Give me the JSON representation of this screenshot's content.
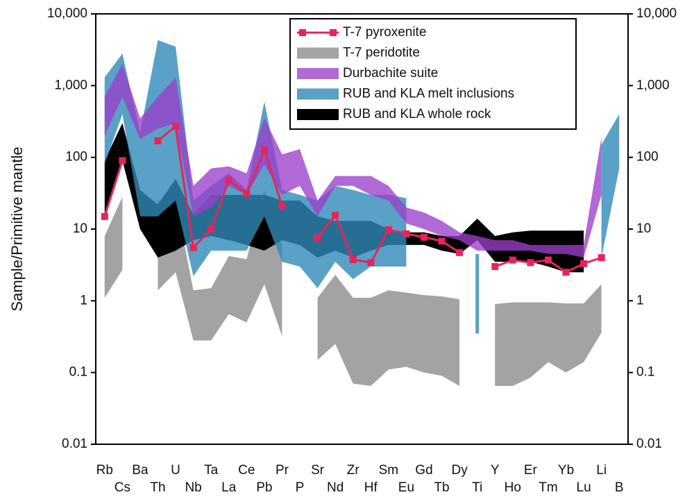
{
  "chart_data": {
    "type": "line",
    "ylabel": "Sample/Primitive mantle",
    "log_scale": true,
    "grid": false,
    "legend": "top-right",
    "categories": [
      "Rb",
      "Cs",
      "Ba",
      "Th",
      "U",
      "Nb",
      "Ta",
      "La",
      "Ce",
      "Pb",
      "Pr",
      "P",
      "Sr",
      "Nd",
      "Zr",
      "Hf",
      "Sm",
      "Eu",
      "Gd",
      "Tb",
      "Dy",
      "Ti",
      "Y",
      "Ho",
      "Er",
      "Tm",
      "Yb",
      "Lu",
      "Li",
      "B"
    ],
    "ylim": [
      0.01,
      10000
    ],
    "yticks": [
      0.01,
      0.1,
      1,
      10,
      100,
      {
        "value": 1000,
        "label": "1,000"
      },
      {
        "value": 10000,
        "label": "10,000"
      }
    ],
    "y2lim": [
      0.01,
      10000
    ],
    "y2ticks": [
      0.01,
      0.1,
      1,
      10,
      100,
      {
        "value": 1000,
        "label": "1,000"
      },
      {
        "value": 10000,
        "label": "10,000"
      }
    ],
    "series": [
      {
        "name": "T-7 pyroxenite",
        "color": "#e8245a",
        "values": [
          15,
          90,
          null,
          170,
          270,
          5.5,
          10,
          48,
          31,
          127,
          21,
          null,
          7.5,
          15.6,
          3.75,
          3.4,
          9.8,
          8.6,
          7.7,
          6.8,
          4.7,
          null,
          3.0,
          3.7,
          3.4,
          3.7,
          2.5,
          3.3,
          4.0,
          null
        ]
      },
      {
        "name": "T-7 peridotite",
        "color": "#a3a3a3",
        "low": [
          1.1,
          2.7,
          null,
          1.4,
          2.5,
          0.28,
          0.28,
          0.65,
          0.5,
          1.7,
          0.32,
          null,
          0.15,
          0.25,
          0.07,
          0.065,
          0.11,
          0.12,
          0.1,
          0.09,
          0.065,
          null,
          0.065,
          0.065,
          0.085,
          0.14,
          0.1,
          0.14,
          0.36,
          null
        ],
        "high": [
          8,
          28,
          null,
          25,
          26,
          1.4,
          1.5,
          4.2,
          3.8,
          35,
          6,
          null,
          1.1,
          2.3,
          1.1,
          1.1,
          1.4,
          1.3,
          1.2,
          1.15,
          1.05,
          null,
          0.9,
          0.95,
          0.95,
          0.95,
          0.92,
          0.92,
          1.7,
          null
        ]
      },
      {
        "name": "Durbachite suite",
        "color": "#9b3fc9",
        "low": [
          200,
          700,
          180,
          250,
          300,
          15,
          20,
          40,
          30,
          80,
          30,
          40,
          15,
          40,
          40,
          30,
          25,
          12,
          10,
          8,
          7,
          5,
          5,
          5,
          5,
          4.5,
          4.5,
          4,
          30,
          null
        ],
        "high": [
          700,
          2000,
          350,
          700,
          1300,
          40,
          70,
          75,
          60,
          350,
          110,
          130,
          25,
          55,
          55,
          55,
          40,
          20,
          17,
          13,
          9,
          8,
          7,
          7,
          6,
          6,
          6,
          6,
          190,
          null
        ]
      },
      {
        "name": "RUB and KLA melt inclusions",
        "color": "#2f8ab8",
        "low": [
          80,
          400,
          15,
          15,
          25,
          2.2,
          5,
          5,
          5,
          15,
          3.5,
          3,
          1.5,
          3.5,
          2,
          3,
          3,
          3,
          null,
          null,
          null,
          0.35,
          null,
          null,
          null,
          null,
          null,
          null,
          4,
          70
        ],
        "high": [
          1300,
          2800,
          220,
          4300,
          3500,
          25,
          40,
          60,
          35,
          600,
          35,
          30,
          25,
          40,
          35,
          30,
          30,
          27,
          null,
          null,
          null,
          4.5,
          null,
          null,
          null,
          null,
          null,
          null,
          150,
          400
        ]
      },
      {
        "name": "RUB and KLA whole rock",
        "color": "#000000",
        "low": [
          15,
          90,
          10,
          4,
          5,
          7,
          8,
          7,
          6,
          5,
          7,
          6,
          4,
          5,
          4,
          5,
          6,
          6,
          6,
          5,
          4.5,
          7,
          3.5,
          3.5,
          3.5,
          3,
          2.5,
          2.5,
          null,
          null
        ],
        "high": [
          90,
          300,
          35,
          22,
          50,
          16,
          30,
          30,
          30,
          30,
          25,
          25,
          15,
          13,
          13,
          13,
          10,
          9,
          9,
          8,
          8,
          14,
          8,
          9,
          9.5,
          9.5,
          9.5,
          9.5,
          null,
          null
        ]
      }
    ]
  }
}
